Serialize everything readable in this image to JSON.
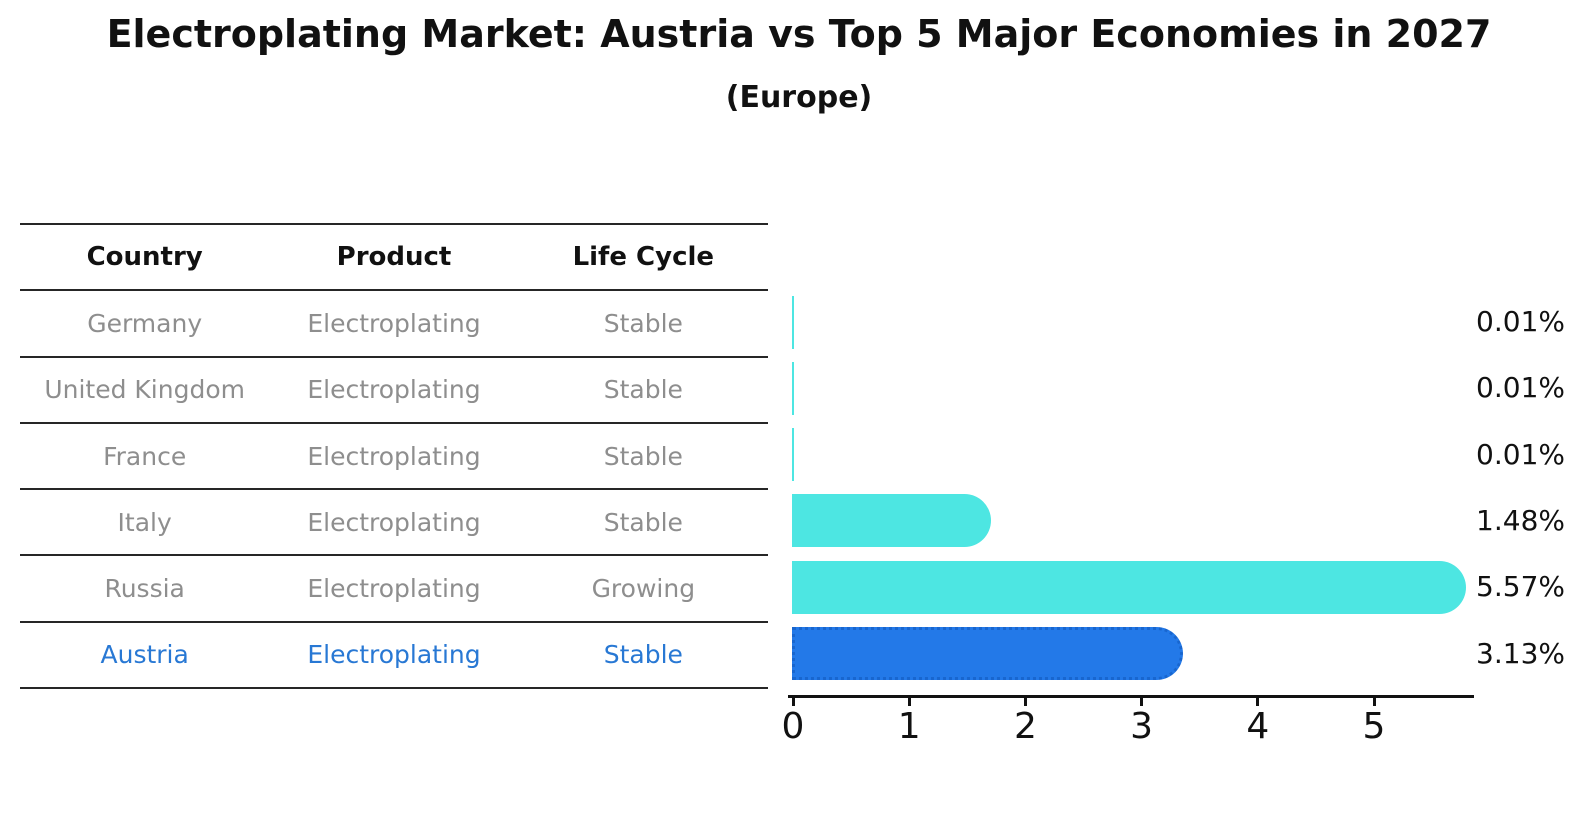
{
  "title": "Electroplating Market: Austria vs Top 5 Major Economies in 2027",
  "subtitle": "(Europe)",
  "table": {
    "headers": [
      "Country",
      "Product",
      "Life Cycle"
    ],
    "rows": [
      {
        "country": "Germany",
        "product": "Electroplating",
        "life_cycle": "Stable",
        "highlight": false
      },
      {
        "country": "United Kingdom",
        "product": "Electroplating",
        "life_cycle": "Stable",
        "highlight": false
      },
      {
        "country": "France",
        "product": "Electroplating",
        "life_cycle": "Stable",
        "highlight": false
      },
      {
        "country": "Italy",
        "product": "Electroplating",
        "life_cycle": "Stable",
        "highlight": false
      },
      {
        "country": "Russia",
        "product": "Electroplating",
        "life_cycle": "Growing",
        "highlight": false
      },
      {
        "country": "Austria",
        "product": "Electroplating",
        "life_cycle": "Stable",
        "highlight": true
      }
    ]
  },
  "chart_data": {
    "type": "bar",
    "orientation": "horizontal",
    "title": "Electroplating Market: Austria vs Top 5 Major Economies in 2027",
    "subtitle": "(Europe)",
    "categories": [
      "Germany",
      "United Kingdom",
      "France",
      "Italy",
      "Russia",
      "Austria"
    ],
    "values": [
      0.01,
      0.01,
      0.01,
      1.48,
      5.57,
      3.13
    ],
    "value_labels": [
      "0.01%",
      "0.01%",
      "0.01%",
      "1.48%",
      "5.57%",
      "3.13%"
    ],
    "xticks": [
      "0",
      "1",
      "2",
      "3",
      "4",
      "5"
    ],
    "xlim": [
      0,
      5.85
    ],
    "grid": false,
    "legend": false,
    "highlight_index": 5,
    "bar_color": "#4de6e2",
    "highlight_color": "#2379e8"
  },
  "colors": {
    "bar_default": "#4de6e2",
    "bar_highlight": "#2379e8",
    "highlight_border": "#1866cf",
    "highlight_text": "#2878d4",
    "muted_text": "#8e8e8e",
    "text": "#111111",
    "line": "#262626"
  }
}
